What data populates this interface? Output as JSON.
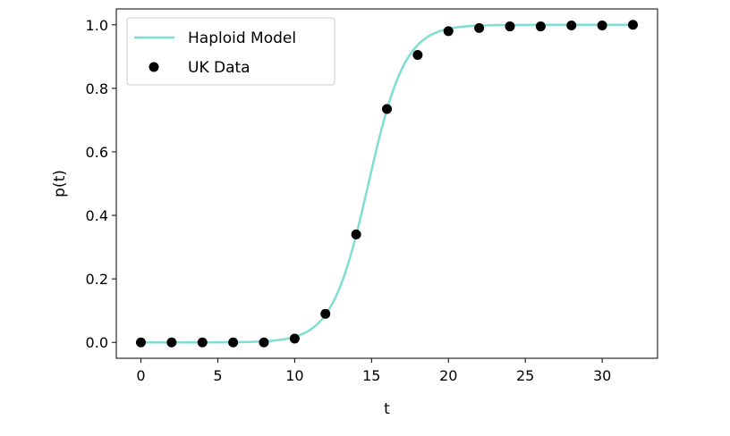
{
  "chart_data": {
    "type": "line",
    "title": "",
    "xlabel": "t",
    "ylabel": "p(t)",
    "xlim": [
      -1.6,
      33.6
    ],
    "ylim": [
      -0.05,
      1.05
    ],
    "xticks": [
      0,
      5,
      10,
      15,
      20,
      25,
      30
    ],
    "xtick_labels": [
      "0",
      "5",
      "10",
      "15",
      "20",
      "25",
      "30"
    ],
    "yticks": [
      0.0,
      0.2,
      0.4,
      0.6,
      0.8,
      1.0
    ],
    "ytick_labels": [
      "0.0",
      "0.2",
      "0.4",
      "0.6",
      "0.8",
      "1.0"
    ],
    "grid": false,
    "legend_position": "top-left",
    "series": [
      {
        "name": "Haploid Model",
        "kind": "line",
        "color": "#7fded4",
        "model": "logistic",
        "midpoint": 14.8,
        "rate": 0.84,
        "x_range": [
          0,
          32
        ]
      },
      {
        "name": "UK Data",
        "kind": "scatter",
        "color": "#000000",
        "x": [
          0,
          2,
          4,
          6,
          8,
          10,
          12,
          14,
          16,
          18,
          20,
          22,
          24,
          26,
          28,
          30,
          32
        ],
        "y": [
          0.0,
          0.0,
          0.0,
          0.0,
          0.0,
          0.012,
          0.09,
          0.34,
          0.735,
          0.905,
          0.98,
          0.99,
          0.995,
          0.995,
          0.998,
          0.998,
          1.0
        ]
      }
    ]
  }
}
